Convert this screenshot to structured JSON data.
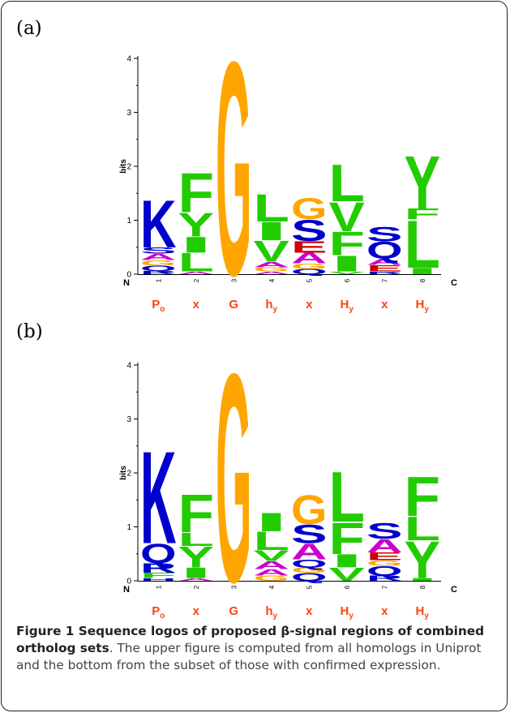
{
  "figure": {
    "panel_a_label": "(a)",
    "panel_b_label": "(b)",
    "caption_title": "Figure 1 Sequence logos of proposed β-signal regions of combined ortholog sets",
    "caption_body": ". The upper figure is computed from all homologs in Uniprot and the bottom from the subset of those with confirmed expression."
  },
  "colors": {
    "K": "#0000cc",
    "R": "#0000cc",
    "H": "#0000cc",
    "G": "#ffa500",
    "F": "#22cc00",
    "L": "#22cc00",
    "Y": "#22cc00",
    "I": "#22cc00",
    "V": "#22cc00",
    "S": "#0000cc",
    "Q": "#0000cc",
    "N": "#0000cc",
    "A": "#cc00cc",
    "E": "#cc0000",
    "D": "#cc0000",
    "pattern": "#ff4411"
  },
  "chart_data": [
    {
      "type": "sequence-logo",
      "panel": "(a)",
      "ylabel": "bits",
      "ylim": [
        0,
        4
      ],
      "yticks": [
        "0",
        "1",
        "2",
        "3",
        "4"
      ],
      "positions": [
        "1",
        "2",
        "3",
        "4",
        "5",
        "6",
        "7",
        "8"
      ],
      "n_label": "N",
      "c_label": "C",
      "pattern": [
        {
          "base": "P",
          "sub": "o"
        },
        {
          "base": "x",
          "sub": ""
        },
        {
          "base": "G",
          "sub": ""
        },
        {
          "base": "h",
          "sub": "y"
        },
        {
          "base": "x",
          "sub": ""
        },
        {
          "base": "H",
          "sub": "y"
        },
        {
          "base": "x",
          "sub": ""
        },
        {
          "base": "H",
          "sub": "y"
        }
      ],
      "stacks": [
        [
          [
            "R",
            0.06
          ],
          [
            "Q",
            0.1
          ],
          [
            "G",
            0.1
          ],
          [
            "A",
            0.12
          ],
          [
            "S",
            0.12
          ],
          [
            "K",
            0.9
          ]
        ],
        [
          [
            "A",
            0.05
          ],
          [
            "L",
            0.35
          ],
          [
            "I",
            0.3
          ],
          [
            "Y",
            0.45
          ],
          [
            "F",
            0.75
          ]
        ],
        [
          [
            "G",
            4.05
          ]
        ],
        [
          [
            "A",
            0.05
          ],
          [
            "G",
            0.08
          ],
          [
            "A",
            0.1
          ],
          [
            "V",
            0.4
          ],
          [
            "I",
            0.35
          ],
          [
            "L",
            0.52
          ]
        ],
        [
          [
            "Q",
            0.1
          ],
          [
            "G",
            0.1
          ],
          [
            "A",
            0.2
          ],
          [
            "E",
            0.22
          ],
          [
            "S",
            0.4
          ],
          [
            "G",
            0.4
          ]
        ],
        [
          [
            "V",
            0.05
          ],
          [
            "I",
            0.3
          ],
          [
            "F",
            0.45
          ],
          [
            "V",
            0.55
          ],
          [
            "L",
            0.7
          ]
        ],
        [
          [
            "R",
            0.05
          ],
          [
            "E",
            0.12
          ],
          [
            "A",
            0.12
          ],
          [
            "Q",
            0.32
          ],
          [
            "S",
            0.27
          ]
        ],
        [
          [
            "I",
            0.12
          ],
          [
            "L",
            0.9
          ],
          [
            "F",
            0.2
          ],
          [
            "Y",
            1.0
          ]
        ]
      ]
    },
    {
      "type": "sequence-logo",
      "panel": "(b)",
      "ylabel": "bits",
      "ylim": [
        0,
        4
      ],
      "yticks": [
        "0",
        "1",
        "2",
        "3",
        "4"
      ],
      "positions": [
        "1",
        "2",
        "3",
        "4",
        "5",
        "6",
        "7",
        "8"
      ],
      "n_label": "N",
      "c_label": "C",
      "pattern": [
        {
          "base": "P",
          "sub": "o"
        },
        {
          "base": "x",
          "sub": ""
        },
        {
          "base": "G",
          "sub": ""
        },
        {
          "base": "h",
          "sub": "y"
        },
        {
          "base": "x",
          "sub": ""
        },
        {
          "base": "H",
          "sub": "y"
        },
        {
          "base": "x",
          "sub": ""
        },
        {
          "base": "H",
          "sub": "y"
        }
      ],
      "stacks": [
        [
          [
            "H",
            0.05
          ],
          [
            "F",
            0.1
          ],
          [
            "R",
            0.18
          ],
          [
            "Q",
            0.37
          ],
          [
            "K",
            1.75
          ]
        ],
        [
          [
            "A",
            0.05
          ],
          [
            "I",
            0.2
          ],
          [
            "Y",
            0.4
          ],
          [
            "L",
            0.25
          ],
          [
            "F",
            0.72
          ]
        ],
        [
          [
            "G",
            3.95
          ]
        ],
        [
          [
            "G",
            0.1
          ],
          [
            "A",
            0.12
          ],
          [
            "A",
            0.15
          ],
          [
            "V",
            0.2
          ],
          [
            "L",
            0.35
          ],
          [
            "I",
            0.35
          ]
        ],
        [
          [
            "Q",
            0.15
          ],
          [
            "G",
            0.1
          ],
          [
            "Q",
            0.15
          ],
          [
            "A",
            0.3
          ],
          [
            "S",
            0.35
          ],
          [
            "G",
            0.55
          ]
        ],
        [
          [
            "V",
            0.25
          ],
          [
            "I",
            0.25
          ],
          [
            "F",
            0.6
          ],
          [
            "L",
            0.95
          ]
        ],
        [
          [
            "R",
            0.1
          ],
          [
            "Q",
            0.18
          ],
          [
            "G",
            0.1
          ],
          [
            "E",
            0.15
          ],
          [
            "A",
            0.25
          ],
          [
            "S",
            0.3
          ]
        ],
        [
          [
            "I",
            0.05
          ],
          [
            "Y",
            0.7
          ],
          [
            "L",
            0.45
          ],
          [
            "F",
            0.75
          ]
        ]
      ]
    }
  ]
}
